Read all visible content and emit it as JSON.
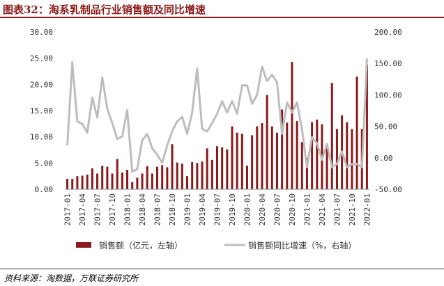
{
  "figure": {
    "title": "图表32：淘系乳制品行业销售额及同比增速",
    "source": "资料来源：淘数据，万联证券研究所"
  },
  "colors": {
    "bar": "#8b1a1a",
    "line": "#bdbdbd",
    "title": "#8b1a1a"
  },
  "chart_data": {
    "type": "bar",
    "grid": false,
    "legend_position": "bottom",
    "categories": [
      "2017-01",
      "2017-02",
      "2017-03",
      "2017-04",
      "2017-05",
      "2017-06",
      "2017-07",
      "2017-08",
      "2017-09",
      "2017-10",
      "2017-11",
      "2017-12",
      "2018-01",
      "2018-02",
      "2018-03",
      "2018-04",
      "2018-05",
      "2018-06",
      "2018-07",
      "2018-08",
      "2018-09",
      "2018-10",
      "2018-11",
      "2018-12",
      "2019-01",
      "2019-02",
      "2019-03",
      "2019-04",
      "2019-05",
      "2019-06",
      "2019-07",
      "2019-08",
      "2019-09",
      "2019-10",
      "2019-11",
      "2019-12",
      "2020-01",
      "2020-02",
      "2020-03",
      "2020-04",
      "2020-05",
      "2020-06",
      "2020-07",
      "2020-08",
      "2020-09",
      "2020-10",
      "2020-11",
      "2020-12",
      "2021-01",
      "2021-02",
      "2021-03",
      "2021-04",
      "2021-05",
      "2021-06",
      "2021-07",
      "2021-08",
      "2021-09",
      "2021-10",
      "2021-11",
      "2021-12",
      "2022-01"
    ],
    "xtick_labels": [
      "2017-01",
      "2017-04",
      "2017-07",
      "2017-10",
      "2018-01",
      "2018-04",
      "2018-07",
      "2018-10",
      "2019-01",
      "2019-04",
      "2019-07",
      "2019-10",
      "2020-01",
      "2020-04",
      "2020-07",
      "2020-10",
      "2021-01",
      "2021-04",
      "2021-07",
      "2021-10",
      "2022-01"
    ],
    "left_axis": {
      "ylim": [
        0,
        30
      ],
      "ticks": [
        "0.00",
        "5.00",
        "10.00",
        "15.00",
        "20.00",
        "25.00",
        "30.00"
      ]
    },
    "right_axis": {
      "ylim": [
        -50,
        200
      ],
      "ticks": [
        "-50.00",
        "0.00",
        "50.00",
        "100.00",
        "150.00",
        "200.00"
      ]
    },
    "series": [
      {
        "name": "销售额（亿元，左轴）",
        "kind": "bar",
        "axis": "left",
        "values": [
          2.0,
          2.0,
          2.5,
          2.6,
          2.8,
          4.0,
          3.0,
          4.5,
          4.3,
          3.0,
          5.8,
          3.2,
          3.7,
          1.4,
          2.2,
          3.0,
          4.4,
          3.0,
          4.3,
          4.6,
          4.2,
          8.6,
          5.1,
          4.9,
          2.5,
          5.2,
          5.0,
          5.3,
          7.8,
          5.6,
          8.2,
          8.0,
          7.6,
          12.0,
          10.8,
          10.6,
          4.5,
          10.3,
          12.0,
          12.6,
          18.0,
          12.0,
          10.8,
          15.2,
          12.7,
          24.3,
          13.0,
          9.0,
          6.0,
          12.8,
          13.3,
          12.4,
          8.8,
          20.3,
          11.5,
          14.1,
          12.8,
          11.5,
          21.5,
          11.5,
          23.8
        ]
      },
      {
        "name": "销售额同比增速（%，右轴）",
        "kind": "line",
        "axis": "right",
        "values": [
          20,
          152,
          58,
          54,
          40,
          96,
          64,
          128,
          78,
          55,
          30,
          34,
          76,
          -22,
          -18,
          28,
          38,
          15,
          5,
          -8,
          20,
          42,
          58,
          65,
          38,
          72,
          142,
          46,
          42,
          55,
          70,
          90,
          72,
          90,
          70,
          115,
          115,
          86,
          100,
          145,
          122,
          132,
          120,
          38,
          88,
          72,
          88,
          45,
          -15,
          33,
          23,
          -3,
          22,
          -15,
          -10,
          10,
          -15,
          -10,
          -10,
          -15,
          158
        ]
      }
    ]
  }
}
